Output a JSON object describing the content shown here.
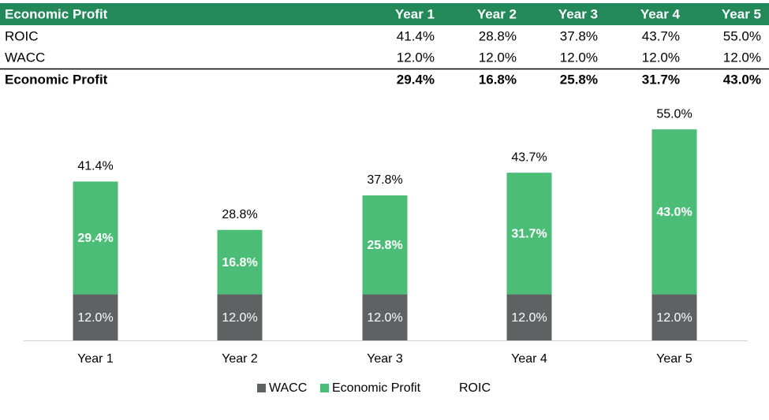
{
  "table": {
    "header": [
      "Economic Profit",
      "Year 1",
      "Year 2",
      "Year 3",
      "Year 4",
      "Year 5"
    ],
    "rows": [
      [
        "ROIC",
        "41.4%",
        "28.8%",
        "37.8%",
        "43.7%",
        "55.0%"
      ],
      [
        "WACC",
        "12.0%",
        "12.0%",
        "12.0%",
        "12.0%",
        "12.0%"
      ],
      [
        "Economic Profit",
        "29.4%",
        "16.8%",
        "25.8%",
        "31.7%",
        "43.0%"
      ]
    ]
  },
  "chart_data": {
    "type": "stacked_bar",
    "categories": [
      "Year 1",
      "Year 2",
      "Year 3",
      "Year 4",
      "Year 5"
    ],
    "series": [
      {
        "name": "WACC",
        "color": "#5f6163",
        "values": [
          12.0,
          12.0,
          12.0,
          12.0,
          12.0
        ],
        "value_labels": [
          "12.0%",
          "12.0%",
          "12.0%",
          "12.0%",
          "12.0%"
        ]
      },
      {
        "name": "Economic Profit",
        "color": "#4cbd77",
        "values": [
          29.4,
          16.8,
          25.8,
          31.7,
          43.0
        ],
        "value_labels": [
          "29.4%",
          "16.8%",
          "25.8%",
          "31.7%",
          "43.0%"
        ]
      },
      {
        "name": "ROIC",
        "values": [
          41.4,
          28.8,
          37.8,
          43.7,
          55.0
        ],
        "value_labels": [
          "41.4%",
          "28.8%",
          "37.8%",
          "43.7%",
          "55.0%"
        ]
      }
    ]
  }
}
